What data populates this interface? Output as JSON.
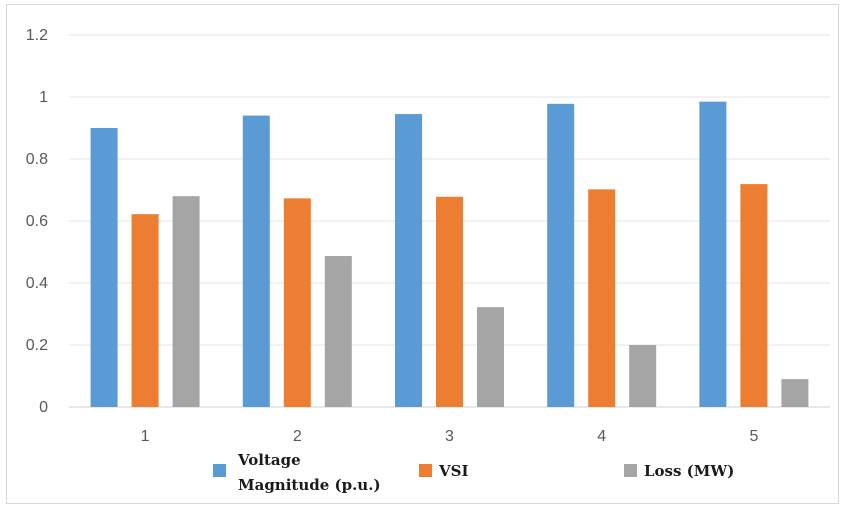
{
  "chart_data": {
    "type": "bar",
    "title": "",
    "xlabel": "",
    "ylabel": "",
    "categories": [
      "1",
      "2",
      "3",
      "4",
      "5"
    ],
    "series": [
      {
        "name": "Voltage Magnitude (p.u.)",
        "legend_lines": [
          "Voltage",
          "Magnitude (p.u.)"
        ],
        "color": "#5b9bd5",
        "values": [
          0.9,
          0.94,
          0.945,
          0.978,
          0.985
        ]
      },
      {
        "name": "VSI",
        "legend_lines": [
          "VSI"
        ],
        "color": "#ed7d31",
        "values": [
          0.622,
          0.673,
          0.678,
          0.702,
          0.719
        ]
      },
      {
        "name": "Loss (MW)",
        "legend_lines": [
          "Loss (MW)"
        ],
        "color": "#a5a5a5",
        "values": [
          0.68,
          0.487,
          0.322,
          0.2,
          0.09
        ]
      }
    ],
    "ylim": [
      0,
      1.2
    ],
    "yticks": [
      "0",
      "0.2",
      "0.4",
      "0.6",
      "0.8",
      "1",
      "1.2"
    ],
    "grid": true,
    "legend_position": "bottom"
  }
}
